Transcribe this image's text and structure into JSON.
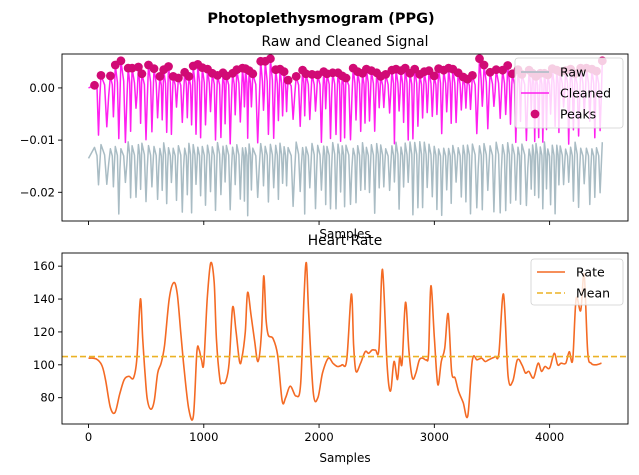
{
  "figure": {
    "suptitle": "Photoplethysmogram (PPG)"
  },
  "chart_data": [
    {
      "type": "line",
      "title": "Raw and Cleaned Signal",
      "xlabel": "Samples",
      "ylabel": "",
      "xlim": [
        -230,
        4680
      ],
      "ylim": [
        -0.0255,
        0.0065
      ],
      "xticks": [
        0,
        1000,
        2000,
        3000,
        4000
      ],
      "show_xtick_labels": false,
      "yticks": [
        0.0,
        -0.01,
        -0.02
      ],
      "ytick_labels": [
        "0.00",
        "−0.01",
        "−0.02"
      ],
      "legend_position": "top-right",
      "series": [
        {
          "name": "Raw",
          "color": "#a9bcc4",
          "style": "line",
          "generator": {
            "baseline": -0.0135,
            "peak_amplitude": 0.0032,
            "trough_min": -0.0245,
            "trough_max": -0.018
          }
        },
        {
          "name": "Cleaned",
          "color": "#ff1ff0",
          "style": "line",
          "generator": {
            "baseline": 0.0,
            "peak_amplitude": 0.0048,
            "trough_min": -0.0108,
            "trough_max": -0.0035
          }
        },
        {
          "name": "Peaks",
          "color": "#d10a75",
          "style": "scatter",
          "generator": "cleaned-peaks"
        }
      ],
      "peak_samples": [
        52,
        108,
        190,
        232,
        281,
        344,
        378,
        433,
        463,
        520,
        568,
        619,
        652,
        694,
        735,
        780,
        834,
        871,
        908,
        948,
        987,
        1032,
        1074,
        1119,
        1167,
        1196,
        1250,
        1286,
        1336,
        1362,
        1393,
        1425,
        1494,
        1533,
        1578,
        1624,
        1661,
        1697,
        1731,
        1802,
        1857,
        1887,
        1939,
        1988,
        2040,
        2069,
        2118,
        2164,
        2201,
        2234,
        2296,
        2335,
        2377,
        2411,
        2454,
        2500,
        2535,
        2578,
        2632,
        2667,
        2711,
        2747,
        2789,
        2830,
        2874,
        2913,
        2954,
        2999,
        3037,
        3081,
        3124,
        3160,
        3207,
        3250,
        3288,
        3330,
        3392,
        3431,
        3484,
        3537,
        3592,
        3636,
        3676,
        3726,
        3760,
        3822,
        3852,
        3882,
        3919,
        3955,
        3984,
        4023,
        4062,
        4092,
        4139,
        4182,
        4221,
        4270,
        4319,
        4367,
        4407,
        4457
      ],
      "peak_values": [
        0.0005,
        0.0024,
        0.0023,
        0.0044,
        0.0052,
        0.0038,
        0.0038,
        0.004,
        0.0027,
        0.0044,
        0.0037,
        0.0022,
        0.0035,
        0.0041,
        0.0022,
        0.0019,
        0.003,
        0.0022,
        0.0042,
        0.0045,
        0.0039,
        0.0036,
        0.0028,
        0.0024,
        0.0029,
        0.0023,
        0.0028,
        0.0035,
        0.0038,
        0.0037,
        0.0033,
        0.0027,
        0.0051,
        0.0051,
        0.0056,
        0.0035,
        0.0036,
        0.0031,
        0.0015,
        0.0022,
        0.0034,
        0.0027,
        0.0026,
        0.0025,
        0.0031,
        0.0027,
        0.0029,
        0.0029,
        0.0023,
        0.0019,
        0.0038,
        0.0031,
        0.0028,
        0.0036,
        0.0033,
        0.0029,
        0.0022,
        0.0026,
        0.0034,
        0.0036,
        0.0033,
        0.0038,
        0.0028,
        0.0036,
        0.0026,
        0.0031,
        0.0033,
        0.0023,
        0.0037,
        0.0034,
        0.0038,
        0.0036,
        0.0029,
        0.0021,
        0.0017,
        0.0024,
        0.0056,
        0.0044,
        0.003,
        0.0035,
        0.0034,
        0.0043,
        0.0027,
        0.0035,
        0.0026,
        0.0034,
        0.0028,
        0.0022,
        0.0028,
        0.0028,
        0.0025,
        0.0037,
        0.0034,
        0.0031,
        0.0033,
        0.0036,
        0.0027,
        0.0038,
        0.0038,
        0.0036,
        0.0032,
        0.0052
      ]
    },
    {
      "type": "line",
      "title": "Heart Rate",
      "xlabel": "Samples",
      "ylabel": "",
      "xlim": [
        -230,
        4680
      ],
      "ylim": [
        64,
        168
      ],
      "xticks": [
        0,
        1000,
        2000,
        3000,
        4000
      ],
      "xtick_labels": [
        "0",
        "1000",
        "2000",
        "3000",
        "4000"
      ],
      "yticks": [
        80,
        100,
        120,
        140,
        160
      ],
      "ytick_labels": [
        "80",
        "100",
        "120",
        "140",
        "160"
      ],
      "legend_position": "top-right",
      "series": [
        {
          "name": "Rate",
          "color": "#f46a24",
          "style": "line",
          "x": [
            0,
            40,
            80,
            120,
            150,
            190,
            230,
            270,
            310,
            350,
            390,
            420,
            450,
            470,
            490,
            510,
            540,
            570,
            600,
            630,
            660,
            700,
            740,
            770,
            800,
            830,
            870,
            910,
            940,
            960,
            980,
            1000,
            1030,
            1060,
            1090,
            1110,
            1140,
            1160,
            1190,
            1220,
            1250,
            1280,
            1310,
            1330,
            1360,
            1380,
            1410,
            1440,
            1470,
            1500,
            1520,
            1540,
            1560,
            1600,
            1640,
            1680,
            1710,
            1750,
            1800,
            1840,
            1870,
            1890,
            1910,
            1950,
            1990,
            2030,
            2080,
            2120,
            2160,
            2200,
            2240,
            2280,
            2300,
            2320,
            2360,
            2400,
            2430,
            2460,
            2490,
            2520,
            2550,
            2590,
            2620,
            2650,
            2680,
            2700,
            2720,
            2750,
            2780,
            2810,
            2840,
            2870,
            2900,
            2930,
            2950,
            2970,
            3000,
            3030,
            3060,
            3090,
            3120,
            3150,
            3180,
            3210,
            3250,
            3290,
            3330,
            3370,
            3410,
            3440,
            3470,
            3500,
            3530,
            3560,
            3600,
            3640,
            3680,
            3720,
            3760,
            3790,
            3820,
            3860,
            3900,
            3930,
            3960,
            4000,
            4040,
            4070,
            4100,
            4140,
            4170,
            4200,
            4230,
            4270,
            4300,
            4330,
            4360,
            4400,
            4450
          ],
          "y": [
            104,
            104,
            103,
            99,
            90,
            74,
            71,
            82,
            91,
            93,
            92,
            104,
            140,
            116,
            95,
            79,
            73,
            78,
            95,
            101,
            112,
            140,
            150,
            143,
            120,
            97,
            73,
            69,
            108,
            109,
            103,
            101,
            140,
            162,
            150,
            115,
            91,
            89,
            90,
            101,
            135,
            120,
            102,
            104,
            120,
            144,
            130,
            115,
            102,
            119,
            154,
            128,
            118,
            116,
            106,
            78,
            80,
            87,
            81,
            88,
            142,
            162,
            131,
            83,
            80,
            95,
            104,
            101,
            99,
            100,
            103,
            143,
            112,
            96,
            101,
            108,
            107,
            109,
            109,
            110,
            158,
            100,
            84,
            102,
            91,
            105,
            101,
            138,
            108,
            92,
            95,
            103,
            104,
            103,
            107,
            148,
            117,
            88,
            102,
            110,
            131,
            96,
            92,
            84,
            77,
            69,
            103,
            103,
            104,
            102,
            103,
            104,
            105,
            107,
            143,
            93,
            90,
            103,
            100,
            95,
            96,
            92,
            101,
            96,
            99,
            98,
            107,
            100,
            101,
            101,
            108,
            103,
            140,
            133,
            155,
            108,
            101,
            100,
            101
          ]
        },
        {
          "name": "Mean",
          "color": "#ebb225",
          "style": "dashed-hline",
          "value": 105
        }
      ]
    }
  ]
}
